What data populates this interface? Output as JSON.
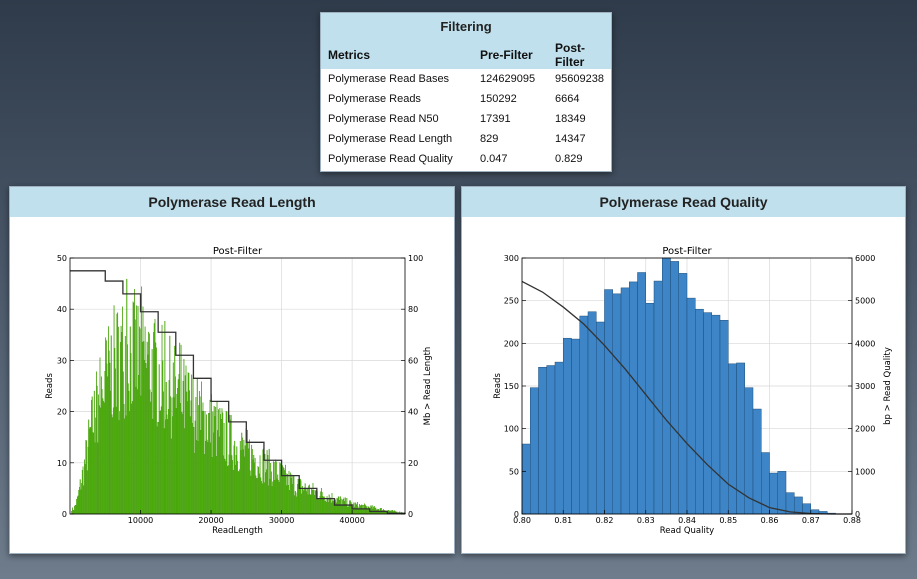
{
  "filtering": {
    "title": "Filtering",
    "headers": [
      "Metrics",
      "Pre-Filter",
      "Post-Filter"
    ],
    "rows": [
      [
        "Polymerase Read Bases",
        "124629095",
        "95609238"
      ],
      [
        "Polymerase Reads",
        "150292",
        "6664"
      ],
      [
        "Polymerase Read N50",
        "17391",
        "18349"
      ],
      [
        "Polymerase Read Length",
        "829",
        "14347"
      ],
      [
        "Polymerase Read Quality",
        "0.047",
        "0.829"
      ]
    ]
  },
  "length_panel": {
    "title": "Polymerase Read Length"
  },
  "quality_panel": {
    "title": "Polymerase Read Quality"
  },
  "colors": {
    "length_bars": "#4db30a",
    "quality_bars": "#3d85c6",
    "cumulative_line": "#333333",
    "header_bg": "#bfe0ec"
  },
  "chart_data": [
    {
      "type": "bar",
      "title": "Post-Filter",
      "xlabel": "ReadLength",
      "ylabel": "Reads",
      "y2label": "Mb > Read Length",
      "xlim": [
        0,
        47500
      ],
      "ylim": [
        0,
        50
      ],
      "y2lim": [
        0,
        100
      ],
      "xticks": [
        10000,
        20000,
        30000,
        40000
      ],
      "yticks": [
        0,
        10,
        20,
        30,
        40,
        50
      ],
      "y2ticks": [
        0,
        20,
        40,
        60,
        80,
        100
      ],
      "grid": true,
      "bins_approx": {
        "bin_width": 100,
        "envelope_x": [
          500,
          1000,
          2000,
          3000,
          4000,
          5000,
          6000,
          7000,
          8000,
          9000,
          10000,
          11000,
          12000,
          14000,
          16000,
          18000,
          20000,
          22000,
          24000,
          26000,
          28000,
          30000,
          32000,
          34000,
          36000,
          38000,
          40000,
          42000,
          44000,
          46000,
          47500
        ],
        "envelope_y": [
          1,
          3,
          10,
          18,
          24,
          28,
          31,
          33,
          34,
          34,
          33,
          32,
          30,
          27,
          24,
          21,
          19,
          16,
          14,
          12,
          10,
          8,
          6,
          5,
          4,
          3,
          2,
          1.5,
          1,
          0.5,
          0.2
        ]
      },
      "cumulative": {
        "name": "Mb > Read Length",
        "x": [
          0,
          2500,
          5000,
          7500,
          10000,
          12500,
          15000,
          17500,
          20000,
          22500,
          25000,
          27500,
          30000,
          32500,
          35000,
          37500,
          40000,
          42500,
          45000,
          47500
        ],
        "y": [
          95,
          95,
          91,
          86,
          79,
          71,
          62,
          53,
          44,
          36,
          28,
          21,
          15,
          10,
          6,
          3.5,
          2,
          1,
          0.3,
          0
        ]
      }
    },
    {
      "type": "bar",
      "title": "Post-Filter",
      "xlabel": "Read Quality",
      "ylabel": "Reads",
      "y2label": "bp > Read Quality",
      "xlim": [
        0.8,
        0.88
      ],
      "ylim": [
        0,
        300
      ],
      "y2lim": [
        0,
        6000
      ],
      "xticks": [
        0.8,
        0.81,
        0.82,
        0.83,
        0.84,
        0.85,
        0.86,
        0.87,
        0.88
      ],
      "yticks": [
        0,
        50,
        100,
        150,
        200,
        250,
        300
      ],
      "y2ticks": [
        0,
        1000,
        2000,
        3000,
        4000,
        5000,
        6000
      ],
      "grid": true,
      "bin_start": 0.8,
      "bin_width": 0.002,
      "values": [
        82,
        148,
        172,
        174,
        178,
        206,
        205,
        232,
        237,
        225,
        263,
        258,
        265,
        272,
        283,
        247,
        273,
        300,
        296,
        282,
        253,
        240,
        236,
        233,
        227,
        176,
        177,
        148,
        123,
        72,
        48,
        50,
        25,
        20,
        12,
        5,
        3,
        1,
        0,
        0
      ],
      "cumulative": {
        "name": "bp > Read Quality",
        "x": [
          0.8,
          0.805,
          0.81,
          0.815,
          0.82,
          0.825,
          0.83,
          0.835,
          0.84,
          0.845,
          0.85,
          0.855,
          0.86,
          0.865,
          0.87,
          0.875,
          0.88
        ],
        "y": [
          5450,
          5200,
          4850,
          4450,
          3950,
          3400,
          2800,
          2200,
          1650,
          1150,
          700,
          380,
          150,
          50,
          10,
          0,
          0
        ]
      }
    }
  ]
}
